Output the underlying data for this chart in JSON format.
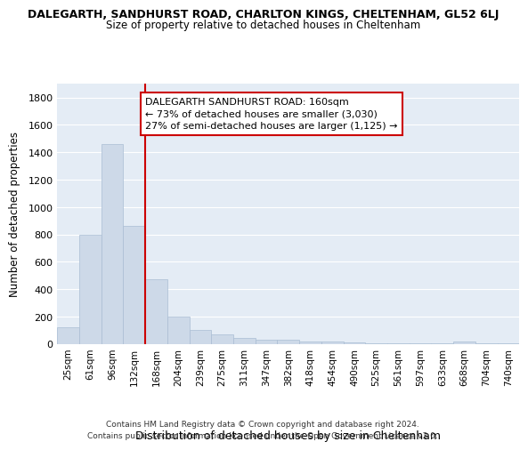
{
  "title_line1": "DALEGARTH, SANDHURST ROAD, CHARLTON KINGS, CHELTENHAM, GL52 6LJ",
  "title_line2": "Size of property relative to detached houses in Cheltenham",
  "xlabel": "Distribution of detached houses by size in Cheltenham",
  "ylabel": "Number of detached properties",
  "categories": [
    "25sqm",
    "61sqm",
    "96sqm",
    "132sqm",
    "168sqm",
    "204sqm",
    "239sqm",
    "275sqm",
    "311sqm",
    "347sqm",
    "382sqm",
    "418sqm",
    "454sqm",
    "490sqm",
    "525sqm",
    "561sqm",
    "597sqm",
    "633sqm",
    "668sqm",
    "704sqm",
    "740sqm"
  ],
  "values": [
    120,
    795,
    1460,
    860,
    475,
    200,
    105,
    70,
    45,
    30,
    30,
    20,
    15,
    10,
    5,
    3,
    2,
    2,
    15,
    2,
    2
  ],
  "bar_color": "#cdd9e8",
  "bar_edge_color": "#aabdd4",
  "background_color": "#e4ecf5",
  "grid_color": "#ffffff",
  "vline_color": "#cc0000",
  "vline_index": 4,
  "annotation_text": "DALEGARTH SANDHURST ROAD: 160sqm\n← 73% of detached houses are smaller (3,030)\n27% of semi-detached houses are larger (1,125) →",
  "annotation_box_color": "#ffffff",
  "annotation_box_edge": "#cc0000",
  "footer_text": "Contains HM Land Registry data © Crown copyright and database right 2024.\nContains public sector information licensed under the Open Government Licence v3.0.",
  "ylim": [
    0,
    1900
  ],
  "yticks": [
    0,
    200,
    400,
    600,
    800,
    1000,
    1200,
    1400,
    1600,
    1800
  ]
}
